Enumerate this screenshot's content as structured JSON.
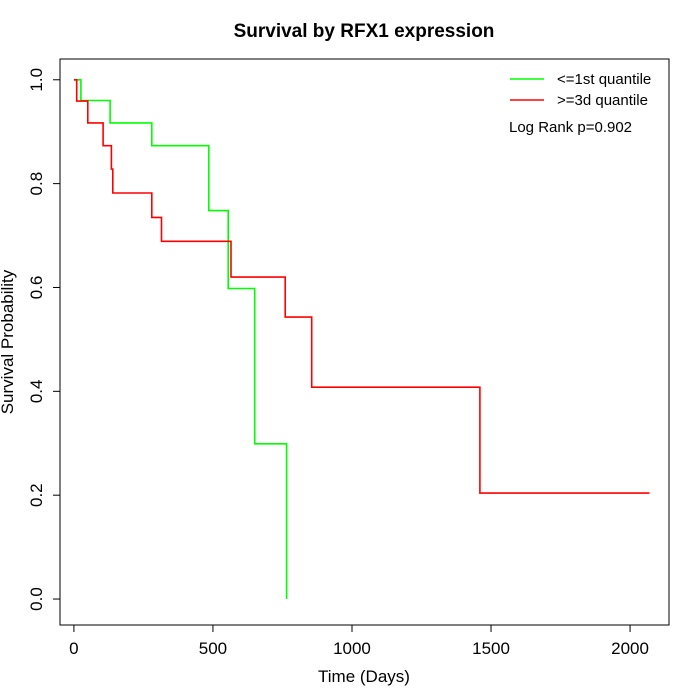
{
  "chart_data": {
    "type": "line",
    "title": "Survival by RFX1 expression",
    "xlabel": "Time (Days)",
    "ylabel": "Survival Probability",
    "xlim": [
      -50,
      2140
    ],
    "ylim": [
      -0.05,
      1.04
    ],
    "x_ticks": [
      0,
      500,
      1000,
      1500,
      2000
    ],
    "y_ticks": [
      0.0,
      0.2,
      0.4,
      0.6,
      0.8,
      1.0
    ],
    "x_tick_labels": [
      "0",
      "500",
      "1000",
      "1500",
      "2000"
    ],
    "y_tick_labels": [
      "0.0",
      "0.2",
      "0.4",
      "0.6",
      "0.8",
      "1.0"
    ],
    "grid": false,
    "legend_position": "top-right",
    "annotation": "Log Rank p=0.902",
    "series": [
      {
        "name": "<=1st quantile",
        "color": "#00ff00",
        "x": [
          0,
          25,
          25,
          130,
          130,
          280,
          280,
          485,
          485,
          555,
          555,
          650,
          650,
          765,
          765
        ],
        "y": [
          1.0,
          1.0,
          0.96,
          0.96,
          0.917,
          0.917,
          0.873,
          0.873,
          0.748,
          0.748,
          0.598,
          0.598,
          0.299,
          0.299,
          0.0
        ]
      },
      {
        "name": ">=3d quantile",
        "color": "#ff0000",
        "x": [
          0,
          10,
          10,
          50,
          50,
          105,
          105,
          135,
          135,
          140,
          140,
          280,
          280,
          315,
          315,
          565,
          565,
          760,
          760,
          855,
          855,
          1460,
          1460,
          2070
        ],
        "y": [
          1.0,
          1.0,
          0.959,
          0.959,
          0.917,
          0.917,
          0.873,
          0.873,
          0.828,
          0.828,
          0.782,
          0.782,
          0.735,
          0.735,
          0.689,
          0.689,
          0.62,
          0.62,
          0.543,
          0.543,
          0.408,
          0.408,
          0.204,
          0.204
        ]
      }
    ]
  }
}
